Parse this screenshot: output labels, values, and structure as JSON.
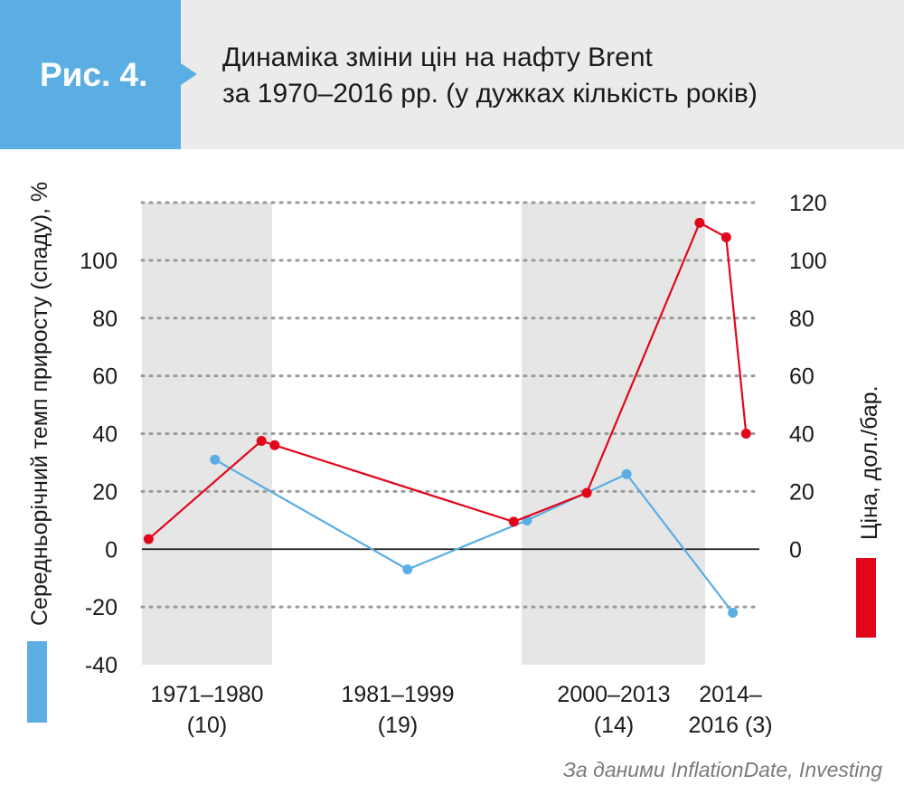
{
  "figure": {
    "badge": "Рис. 4.",
    "title_line1": "Динаміка зміни цін на нафту Brent",
    "title_line2": "за 1970–2016 рр. (у дужках кількість років)",
    "source": "За даними InflationDate, Investing"
  },
  "colors": {
    "badge": "#5aaee3",
    "header_bg": "#ebebeb",
    "shade": "#e6e6e6",
    "growth": "#5aaee3",
    "price": "#e2061b",
    "grid": "#9a9a9a"
  },
  "chart_data": {
    "type": "line",
    "y_left": {
      "label": "Середньорічний темп приросту (спаду), %",
      "ticks": [
        100,
        80,
        60,
        40,
        20,
        0,
        -20,
        -40
      ],
      "range": [
        -40,
        120
      ]
    },
    "y_right": {
      "label": "Ціна, дол./бар.",
      "ticks": [
        120,
        100,
        80,
        60,
        40,
        20,
        0
      ],
      "range": [
        -40,
        120
      ]
    },
    "x_range": [
      1970,
      2016.5
    ],
    "grid": "dotted horizontal",
    "periods": [
      {
        "label_line1": "1971–1980",
        "label_line2": "(10)",
        "start": 1970,
        "end": 1980,
        "shaded": true
      },
      {
        "label_line1": "1981–1999",
        "label_line2": "(19)",
        "start": 1980,
        "end": 1999,
        "shaded": false
      },
      {
        "label_line1": "2000–2013",
        "label_line2": "(14)",
        "start": 1999,
        "end": 2013,
        "shaded": true
      },
      {
        "label_line1": "2014–",
        "label_line2": "2016 (3)",
        "start": 2013,
        "end": 2016.5,
        "shaded": false
      }
    ],
    "series": [
      {
        "axis": "left",
        "points": [
          {
            "x": 1975.5,
            "y": 31
          },
          {
            "x": 1990,
            "y": -7
          },
          {
            "x": 1999,
            "y": 10
          },
          {
            "x": 2006.5,
            "y": 26
          },
          {
            "x": 2014.5,
            "y": -22
          }
        ]
      },
      {
        "axis": "right",
        "points": [
          {
            "x": 1970.5,
            "y": 3.5
          },
          {
            "x": 1979,
            "y": 37.5
          },
          {
            "x": 1980,
            "y": 36
          },
          {
            "x": 1998,
            "y": 9.5
          },
          {
            "x": 2003.5,
            "y": 19.5
          },
          {
            "x": 2012,
            "y": 113
          },
          {
            "x": 2014,
            "y": 108
          },
          {
            "x": 2015.5,
            "y": 40
          }
        ]
      }
    ]
  }
}
